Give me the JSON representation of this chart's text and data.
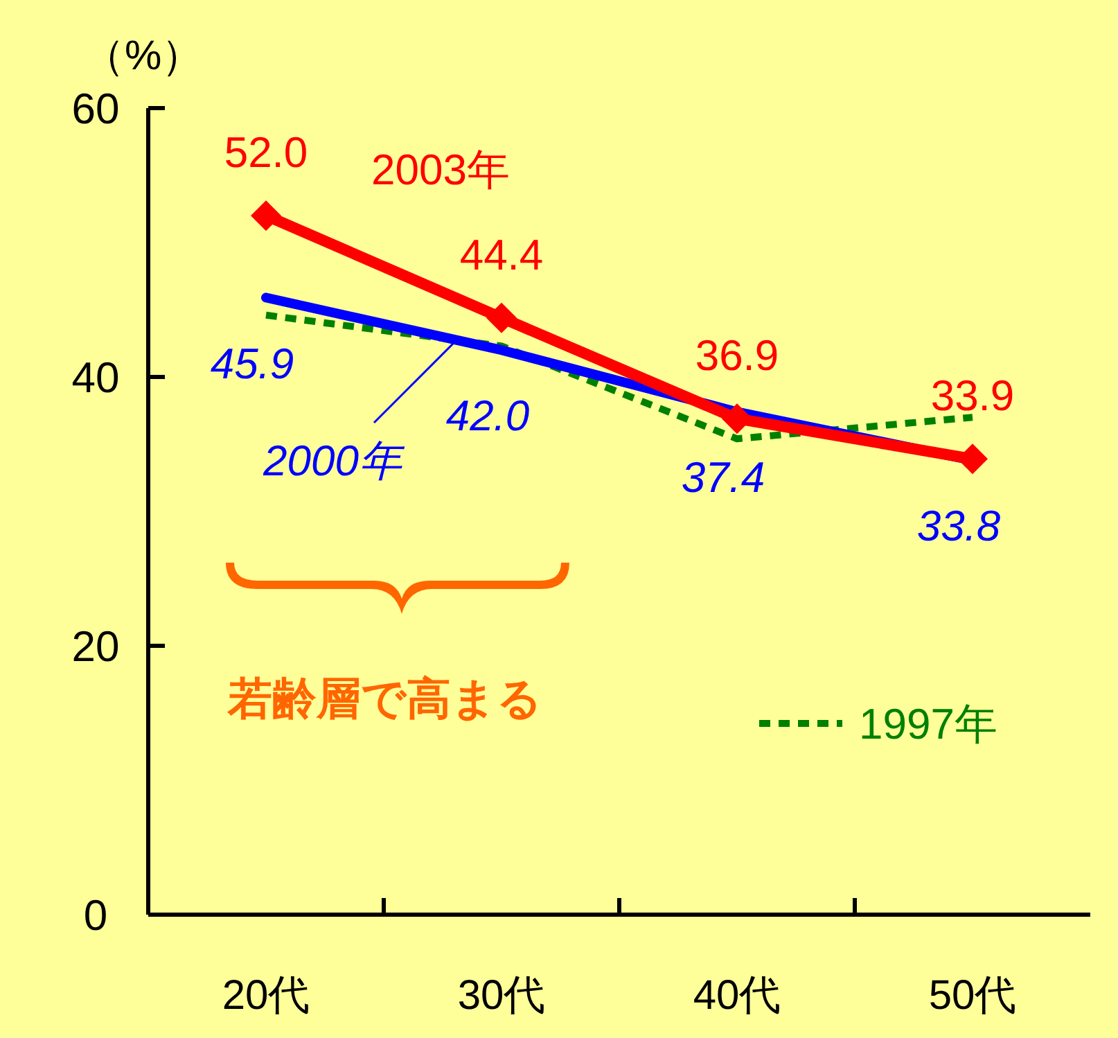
{
  "chart_data": {
    "type": "line",
    "ylabel": "（%）",
    "categories": [
      "20代",
      "30代",
      "40代",
      "50代"
    ],
    "ylim": [
      0,
      60
    ],
    "yticks": [
      0,
      20,
      40,
      60
    ],
    "grid": false,
    "legend": "bottom right",
    "series": [
      {
        "name": "1997年",
        "color": "#008000",
        "values": [
          44.6,
          42.3,
          35.4,
          37.0
        ],
        "line_style": "dotted",
        "marker": "none"
      },
      {
        "name": "2000年",
        "color": "#0000ff",
        "values": [
          45.9,
          42.0,
          37.4,
          33.8
        ],
        "value_labels": [
          "45.9",
          "42.0",
          "37.4",
          "33.8"
        ],
        "line_style": "solid",
        "marker": "none"
      },
      {
        "name": "2003年",
        "color": "#ff0000",
        "values": [
          52.0,
          44.4,
          36.9,
          33.9
        ],
        "value_labels": [
          "52.0",
          "44.4",
          "36.9",
          "33.9"
        ],
        "line_style": "solid",
        "marker": "diamond"
      }
    ],
    "annotations": [
      "若齢層で高まる"
    ]
  }
}
